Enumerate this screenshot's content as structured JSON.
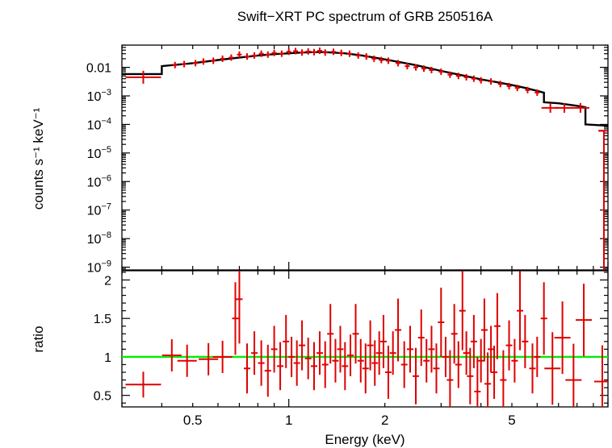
{
  "chart_data": [
    {
      "type": "scatter",
      "title": "Swift−XRT PC spectrum of GRB 250516A",
      "xlabel": "",
      "ylabel": "counts s⁻¹ keV⁻¹",
      "xscale": "log",
      "yscale": "log",
      "xlim": [
        0.3,
        10
      ],
      "ylim": [
        8e-10,
        0.06
      ],
      "y_ticks": [
        {
          "value": 0.01,
          "base": "0.01",
          "exp": ""
        },
        {
          "value": 0.001,
          "base": "10",
          "exp": "−3"
        },
        {
          "value": 0.0001,
          "base": "10",
          "exp": "−4"
        },
        {
          "value": 1e-05,
          "base": "10",
          "exp": "−5"
        },
        {
          "value": 1e-06,
          "base": "10",
          "exp": "−6"
        },
        {
          "value": 1e-07,
          "base": "10",
          "exp": "−7"
        },
        {
          "value": 1e-08,
          "base": "10",
          "exp": "−8"
        },
        {
          "value": 1e-09,
          "base": "10",
          "exp": "−9"
        }
      ],
      "data_color": "#e00000",
      "model_color": "#000000",
      "series": [
        {
          "kind": "data",
          "points": [
            [
              0.35,
              0.0045
            ],
            [
              0.44,
              0.012
            ],
            [
              0.47,
              0.013
            ],
            [
              0.51,
              0.014
            ],
            [
              0.54,
              0.016
            ],
            [
              0.58,
              0.017
            ],
            [
              0.62,
              0.02
            ],
            [
              0.66,
              0.022
            ],
            [
              0.7,
              0.028
            ],
            [
              0.74,
              0.024
            ],
            [
              0.78,
              0.026
            ],
            [
              0.82,
              0.03
            ],
            [
              0.86,
              0.028
            ],
            [
              0.9,
              0.032
            ],
            [
              0.95,
              0.03
            ],
            [
              1.0,
              0.035
            ],
            [
              1.05,
              0.037
            ],
            [
              1.1,
              0.033
            ],
            [
              1.15,
              0.036
            ],
            [
              1.2,
              0.034
            ],
            [
              1.25,
              0.038
            ],
            [
              1.3,
              0.033
            ],
            [
              1.38,
              0.035
            ],
            [
              1.46,
              0.032
            ],
            [
              1.55,
              0.03
            ],
            [
              1.65,
              0.026
            ],
            [
              1.75,
              0.024
            ],
            [
              1.85,
              0.02
            ],
            [
              1.95,
              0.018
            ],
            [
              2.05,
              0.017
            ],
            [
              2.2,
              0.014
            ],
            [
              2.35,
              0.011
            ],
            [
              2.5,
              0.01
            ],
            [
              2.65,
              0.009
            ],
            [
              2.8,
              0.008
            ],
            [
              3.0,
              0.007
            ],
            [
              3.2,
              0.0055
            ],
            [
              3.4,
              0.005
            ],
            [
              3.6,
              0.0045
            ],
            [
              3.8,
              0.004
            ],
            [
              4.0,
              0.0035
            ],
            [
              4.3,
              0.0032
            ],
            [
              4.6,
              0.0026
            ],
            [
              4.9,
              0.0022
            ],
            [
              5.2,
              0.0019
            ],
            [
              5.6,
              0.0016
            ],
            [
              6.0,
              0.0013
            ],
            [
              6.6,
              0.00038
            ],
            [
              7.3,
              0.00038
            ],
            [
              8.2,
              0.00038
            ],
            [
              9.6,
              6e-05
            ]
          ]
        },
        {
          "kind": "model",
          "points": [
            [
              0.3,
              0.0058
            ],
            [
              0.4,
              0.0058
            ],
            [
              0.4,
              0.011
            ],
            [
              0.5,
              0.014
            ],
            [
              0.6,
              0.018
            ],
            [
              0.7,
              0.022
            ],
            [
              0.8,
              0.026
            ],
            [
              0.9,
              0.029
            ],
            [
              1.0,
              0.031
            ],
            [
              1.1,
              0.033
            ],
            [
              1.2,
              0.034
            ],
            [
              1.3,
              0.034
            ],
            [
              1.5,
              0.031
            ],
            [
              1.7,
              0.026
            ],
            [
              2.0,
              0.019
            ],
            [
              2.5,
              0.012
            ],
            [
              3.0,
              0.0075
            ],
            [
              3.5,
              0.0052
            ],
            [
              4.0,
              0.0038
            ],
            [
              4.5,
              0.003
            ],
            [
              5.0,
              0.0024
            ],
            [
              5.5,
              0.0019
            ],
            [
              6.0,
              0.0015
            ],
            [
              6.3,
              0.0013
            ],
            [
              6.3,
              0.0006
            ],
            [
              7.0,
              0.00055
            ],
            [
              8.0,
              0.00045
            ],
            [
              8.5,
              0.0004
            ],
            [
              8.5,
              0.0001
            ],
            [
              10.0,
              9e-05
            ]
          ]
        }
      ]
    },
    {
      "type": "scatter",
      "title": "",
      "xlabel": "Energy (keV)",
      "ylabel": "ratio",
      "xscale": "log",
      "yscale": "linear",
      "xlim": [
        0.3,
        10
      ],
      "ylim": [
        0.35,
        2.12
      ],
      "y_ticks": [
        {
          "value": 0.5,
          "label": "0.5"
        },
        {
          "value": 1,
          "label": "1"
        },
        {
          "value": 1.5,
          "label": "1.5"
        },
        {
          "value": 2,
          "label": "2"
        }
      ],
      "x_ticks": [
        {
          "value": 0.5,
          "label": "0.5"
        },
        {
          "value": 1,
          "label": "1"
        },
        {
          "value": 2,
          "label": "2"
        },
        {
          "value": 5,
          "label": "5"
        }
      ],
      "reference_line": {
        "value": 1,
        "color": "#00ee00"
      },
      "data_color": "#e00000",
      "series": [
        {
          "kind": "data",
          "points": [
            [
              0.35,
              0.64
            ],
            [
              0.43,
              1.02
            ],
            [
              0.48,
              0.95
            ],
            [
              0.56,
              0.97
            ],
            [
              0.62,
              1.0
            ],
            [
              0.68,
              1.5
            ],
            [
              0.7,
              1.75
            ],
            [
              0.74,
              0.85
            ],
            [
              0.78,
              1.05
            ],
            [
              0.82,
              0.92
            ],
            [
              0.86,
              0.82
            ],
            [
              0.9,
              1.1
            ],
            [
              0.94,
              0.88
            ],
            [
              0.98,
              1.2
            ],
            [
              1.02,
              1.0
            ],
            [
              1.06,
              0.92
            ],
            [
              1.1,
              1.15
            ],
            [
              1.15,
              0.98
            ],
            [
              1.2,
              0.88
            ],
            [
              1.25,
              1.05
            ],
            [
              1.3,
              0.9
            ],
            [
              1.35,
              1.3
            ],
            [
              1.4,
              0.95
            ],
            [
              1.45,
              1.1
            ],
            [
              1.5,
              0.88
            ],
            [
              1.56,
              1.02
            ],
            [
              1.62,
              1.3
            ],
            [
              1.68,
              0.95
            ],
            [
              1.74,
              0.85
            ],
            [
              1.8,
              1.15
            ],
            [
              1.86,
              0.92
            ],
            [
              1.92,
              1.05
            ],
            [
              1.98,
              1.2
            ],
            [
              2.05,
              0.8
            ],
            [
              2.12,
              1.05
            ],
            [
              2.2,
              1.35
            ],
            [
              2.3,
              0.9
            ],
            [
              2.4,
              1.1
            ],
            [
              2.5,
              0.75
            ],
            [
              2.6,
              1.25
            ],
            [
              2.7,
              0.95
            ],
            [
              2.8,
              1.1
            ],
            [
              2.9,
              0.85
            ],
            [
              3.0,
              1.45
            ],
            [
              3.1,
              1.0
            ],
            [
              3.2,
              0.7
            ],
            [
              3.3,
              1.3
            ],
            [
              3.4,
              0.9
            ],
            [
              3.5,
              1.6
            ],
            [
              3.6,
              1.05
            ],
            [
              3.7,
              0.75
            ],
            [
              3.8,
              1.2
            ],
            [
              3.9,
              0.55
            ],
            [
              4.0,
              0.95
            ],
            [
              4.1,
              1.35
            ],
            [
              4.2,
              0.65
            ],
            [
              4.3,
              1.1
            ],
            [
              4.4,
              0.8
            ],
            [
              4.5,
              1.4
            ],
            [
              4.7,
              0.7
            ],
            [
              4.9,
              1.15
            ],
            [
              5.1,
              0.95
            ],
            [
              5.3,
              1.6
            ],
            [
              5.5,
              1.2
            ],
            [
              5.8,
              0.85
            ],
            [
              6.0,
              1.0
            ],
            [
              6.3,
              1.5
            ],
            [
              6.7,
              0.85
            ],
            [
              7.2,
              1.25
            ],
            [
              7.8,
              0.7
            ],
            [
              8.4,
              1.48
            ],
            [
              9.6,
              0.68
            ]
          ]
        }
      ]
    }
  ]
}
